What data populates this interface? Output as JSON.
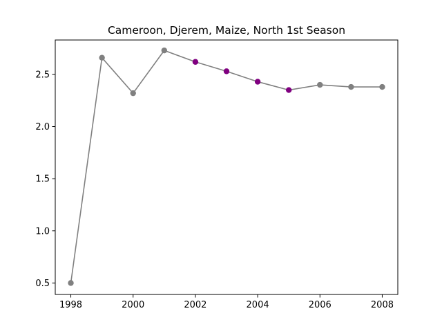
{
  "chart_data": {
    "type": "line",
    "title": "Cameroon, Djerem, Maize, North 1st Season",
    "xlabel": "",
    "ylabel": "",
    "x": [
      1998,
      1999,
      2000,
      2001,
      2002,
      2003,
      2004,
      2005,
      2006,
      2007,
      2008
    ],
    "series": [
      {
        "values": [
          0.5,
          2.66,
          2.32,
          2.73,
          2.62,
          2.53,
          2.43,
          2.35,
          2.4,
          2.38,
          2.38
        ],
        "line_color": "#808080",
        "point_colors": [
          "#808080",
          "#808080",
          "#808080",
          "#808080",
          "#800080",
          "#800080",
          "#800080",
          "#800080",
          "#808080",
          "#808080",
          "#808080"
        ]
      }
    ],
    "xlim": [
      1997.5,
      2008.5
    ],
    "ylim": [
      0.39,
      2.83
    ],
    "xticks": [
      "1998",
      "2000",
      "2002",
      "2004",
      "2006",
      "2008"
    ],
    "yticks": [
      "0.5",
      "1.0",
      "1.5",
      "2.0",
      "2.5"
    ],
    "grid": false,
    "legend": "none"
  }
}
